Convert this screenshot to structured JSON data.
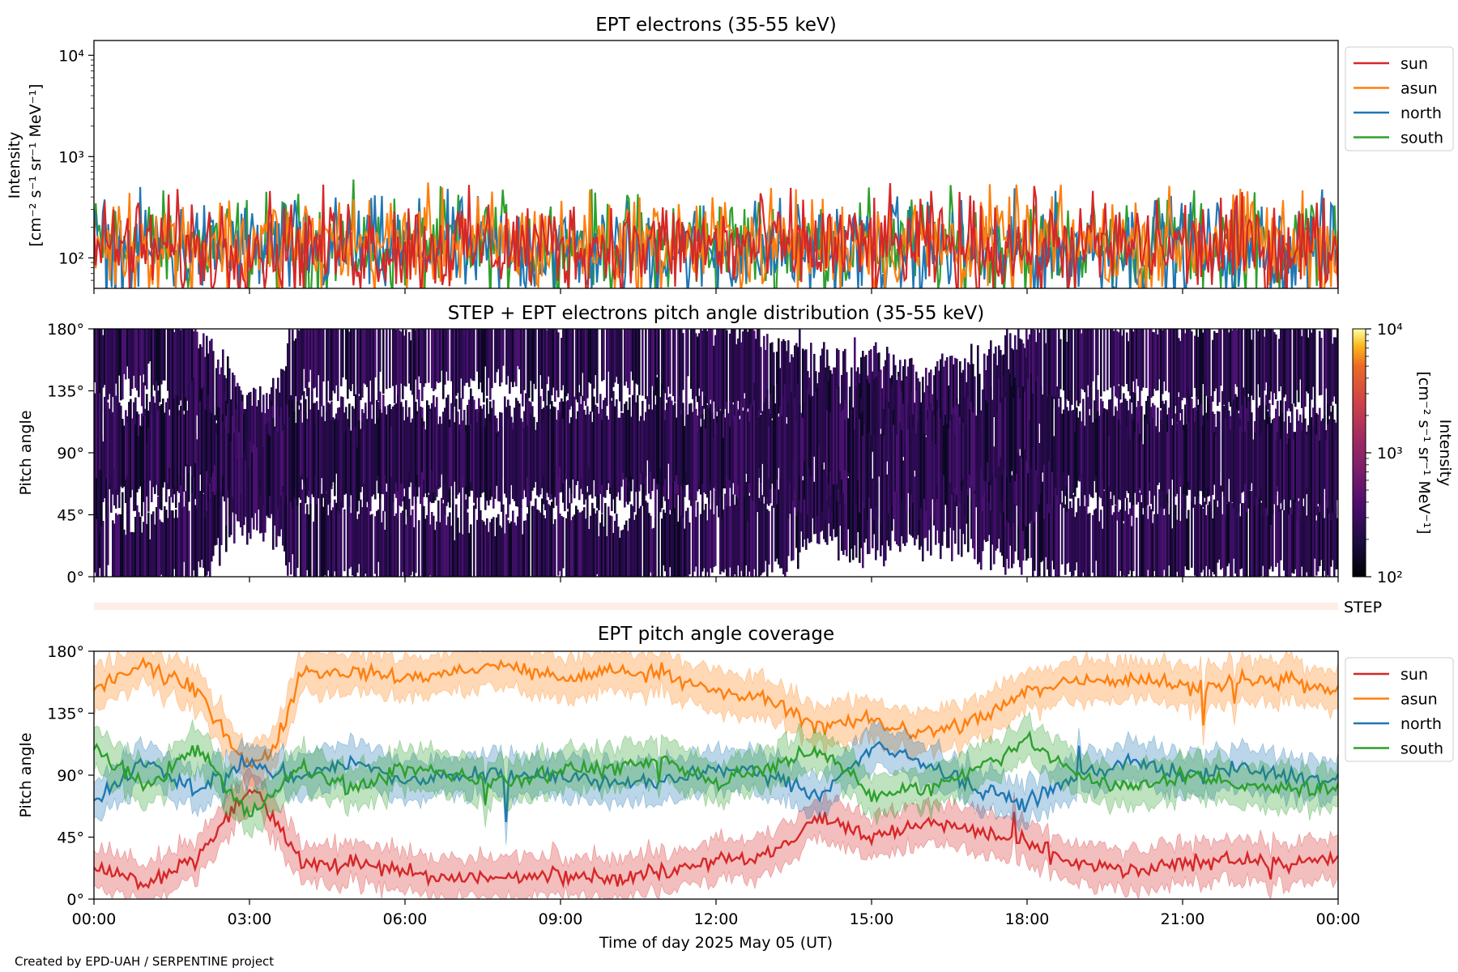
{
  "chart_data": [
    {
      "type": "line",
      "title": "EPT electrons (35-55 keV)",
      "ylabel_line1": "Intensity",
      "ylabel_line2": "[cm⁻² s⁻¹ sr⁻¹ MeV⁻¹]",
      "yscale": "log",
      "ylim": [
        50,
        14000
      ],
      "yticks": [
        {
          "value": 100,
          "label": "10²"
        },
        {
          "value": 1000,
          "label": "10³"
        },
        {
          "value": 10000,
          "label": "10⁴"
        }
      ],
      "xlim_hours": [
        0,
        24
      ],
      "legend_position": "right",
      "series": [
        {
          "name": "sun",
          "color": "#d62728",
          "typical": 130,
          "spread": 0.45
        },
        {
          "name": "asun",
          "color": "#ff7f0e",
          "typical": 140,
          "spread": 0.45
        },
        {
          "name": "north",
          "color": "#1f77b4",
          "typical": 120,
          "spread": 0.45
        },
        {
          "name": "south",
          "color": "#2ca02c",
          "typical": 135,
          "spread": 0.45
        }
      ]
    },
    {
      "type": "heatmap",
      "title": "STEP + EPT electrons pitch angle distribution (35-55 keV)",
      "ylabel": "Pitch angle",
      "ylim": [
        0,
        180
      ],
      "yticks": [
        "0°",
        "45°",
        "90°",
        "135°",
        "180°"
      ],
      "colorbar": {
        "scale": "log",
        "range": [
          100,
          10000
        ],
        "ticks": [
          "10²",
          "10³",
          "10⁴"
        ],
        "label_line1": "Intensity",
        "label_line2": "[cm⁻² s⁻¹ sr⁻¹ MeV⁻¹]",
        "colormap": "inferno"
      }
    },
    {
      "type": "bar",
      "label": "STEP",
      "color": "#fdeee6"
    },
    {
      "type": "line",
      "title": "EPT pitch angle coverage",
      "ylabel": "Pitch angle",
      "ylim": [
        0,
        180
      ],
      "yticks": [
        "0°",
        "45°",
        "90°",
        "135°",
        "180°"
      ],
      "xlim_hours": [
        0,
        24
      ],
      "legend_position": "right",
      "series": [
        {
          "name": "sun",
          "color": "#d62728",
          "x_hours": [
            0,
            1,
            2,
            3,
            3.5,
            4,
            5,
            6,
            7,
            8,
            9,
            10,
            11,
            12,
            13,
            14,
            15,
            16,
            17,
            18,
            19,
            20,
            21,
            22,
            23,
            24
          ],
          "values": [
            25,
            10,
            30,
            80,
            60,
            25,
            25,
            20,
            15,
            15,
            20,
            15,
            20,
            30,
            30,
            60,
            45,
            55,
            50,
            40,
            25,
            20,
            25,
            30,
            25,
            30
          ]
        },
        {
          "name": "asun",
          "color": "#ff7f0e",
          "x_hours": [
            0,
            1,
            2,
            3,
            3.5,
            4,
            5,
            6,
            7,
            8,
            9,
            10,
            11,
            12,
            13,
            14,
            15,
            16,
            17,
            18,
            19,
            20,
            21,
            22,
            23,
            24
          ],
          "values": [
            155,
            170,
            150,
            95,
            110,
            165,
            165,
            160,
            165,
            170,
            160,
            165,
            165,
            150,
            145,
            125,
            130,
            120,
            130,
            150,
            160,
            160,
            155,
            155,
            160,
            150
          ]
        },
        {
          "name": "north",
          "color": "#1f77b4",
          "x_hours": [
            0,
            1,
            2,
            3,
            3.5,
            4,
            5,
            6,
            7,
            8,
            9,
            10,
            11,
            12,
            13,
            14,
            15,
            16,
            17,
            18,
            19,
            20,
            21,
            22,
            23,
            24
          ],
          "values": [
            70,
            100,
            80,
            100,
            90,
            90,
            100,
            85,
            90,
            90,
            90,
            85,
            85,
            95,
            90,
            75,
            110,
            100,
            80,
            70,
            90,
            100,
            90,
            95,
            90,
            85
          ]
        },
        {
          "name": "south",
          "color": "#2ca02c",
          "x_hours": [
            0,
            1,
            2,
            3,
            3.5,
            4,
            5,
            6,
            7,
            8,
            9,
            10,
            11,
            12,
            13,
            14,
            15,
            16,
            17,
            18,
            19,
            20,
            21,
            22,
            23,
            24
          ],
          "values": [
            110,
            80,
            110,
            60,
            80,
            95,
            80,
            95,
            90,
            85,
            95,
            95,
            100,
            85,
            95,
            110,
            75,
            80,
            95,
            115,
            90,
            80,
            90,
            85,
            80,
            80
          ]
        }
      ]
    }
  ],
  "xaxis": {
    "ticks": [
      "00:00",
      "03:00",
      "06:00",
      "09:00",
      "12:00",
      "15:00",
      "18:00",
      "21:00",
      "00:00"
    ],
    "label": "Time of day 2025 May 05 (UT)"
  },
  "credit": "Created by EPD-UAH / SERPENTINE project"
}
